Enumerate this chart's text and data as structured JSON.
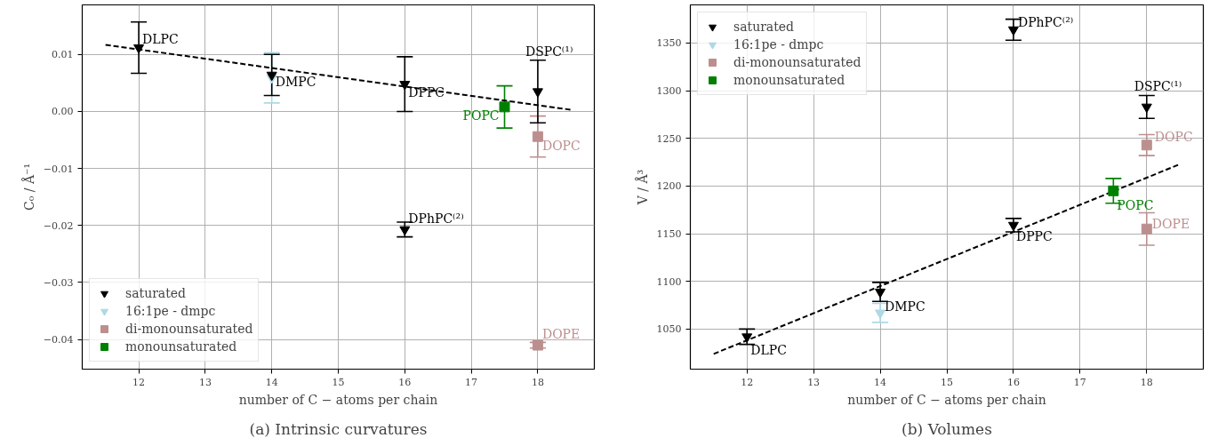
{
  "chart_data": [
    {
      "type": "scatter",
      "title": "(a) Intrinsic curvatures",
      "xlabel": "number of C − atoms per chain",
      "ylabel": "C₀ / Å⁻¹",
      "xlim": [
        11.15,
        18.85
      ],
      "ylim": [
        -0.0452,
        0.0187
      ],
      "xticks": [
        12,
        13,
        14,
        15,
        16,
        17,
        18
      ],
      "yticks": [
        {
          "value": -0.04,
          "label": "−0.04"
        },
        {
          "value": -0.03,
          "label": "−0.03"
        },
        {
          "value": -0.02,
          "label": "−0.02"
        },
        {
          "value": -0.01,
          "label": "−0.01"
        },
        {
          "value": 0.0,
          "label": "0.00"
        },
        {
          "value": 0.01,
          "label": "0.01"
        }
      ],
      "grid": true,
      "legend": "bottom left",
      "series": [
        {
          "name": "saturated",
          "color": "#000000",
          "marker": "triangle",
          "x": [
            12,
            14,
            16,
            16,
            18
          ],
          "values": [
            0.0112,
            0.0064,
            0.0048,
            -0.0207,
            0.0035
          ],
          "errors": [
            0.0045,
            0.0036,
            0.0048,
            0.0013,
            0.0055
          ]
        },
        {
          "name": "16:1pe - dmpc",
          "color": "#add8e6",
          "marker": "triangle",
          "x": [
            14
          ],
          "values": [
            0.0059
          ],
          "errors": [
            0.0044
          ]
        },
        {
          "name": "di-monounsaturated",
          "color": "#bc8f8f",
          "marker": "square",
          "x": [
            18,
            18
          ],
          "values": [
            -0.0044,
            -0.041
          ],
          "errors": [
            0.0036,
            0.0005
          ]
        },
        {
          "name": "monounsaturated",
          "color": "#008000",
          "marker": "square",
          "x": [
            17.5
          ],
          "values": [
            0.0008
          ],
          "errors": [
            0.0037
          ]
        },
        {
          "type": "line",
          "color": "#000000",
          "line_style": "dashed",
          "x": [
            11.5,
            18.5
          ],
          "values": [
            0.0117,
            0.0003
          ]
        }
      ],
      "annotations": [
        {
          "text": "DLPC",
          "x": 12,
          "y": 0.0112
        },
        {
          "text": "DMPC",
          "x": 14,
          "y": 0.0064
        },
        {
          "text": "DPPC",
          "x": 16,
          "y": 0.0048
        },
        {
          "text": "DPhPC⁽²⁾",
          "x": 16,
          "y": -0.0207
        },
        {
          "text": "DSPC⁽¹⁾",
          "x": 18,
          "y": 0.0035
        },
        {
          "text": "POPC",
          "x": 17.5,
          "y": 0.0008
        },
        {
          "text": "DOPC",
          "x": 18,
          "y": -0.0044
        },
        {
          "text": "DOPE",
          "x": 18,
          "y": -0.041
        }
      ]
    },
    {
      "type": "scatter",
      "title": "(b) Volumes",
      "xlabel": "number of C − atoms per chain",
      "ylabel": "V / Å³",
      "xlim": [
        11.15,
        18.85
      ],
      "ylim": [
        1008,
        1390
      ],
      "xticks": [
        12,
        13,
        14,
        15,
        16,
        17,
        18
      ],
      "yticks": [
        1050,
        1100,
        1150,
        1200,
        1250,
        1300,
        1350
      ],
      "grid": true,
      "legend": "top left",
      "series": [
        {
          "name": "saturated",
          "color": "#000000",
          "marker": "triangle",
          "x": [
            12,
            14,
            16,
            16,
            18
          ],
          "values": [
            1042,
            1089,
            1159,
            1364,
            1283
          ],
          "errors": [
            8,
            10,
            7,
            11,
            12
          ]
        },
        {
          "name": "16:1pe - dmpc",
          "color": "#add8e6",
          "marker": "triangle",
          "x": [
            14
          ],
          "values": [
            1067
          ],
          "errors": [
            10
          ]
        },
        {
          "name": "di-monounsaturated",
          "color": "#bc8f8f",
          "marker": "square",
          "x": [
            18,
            18
          ],
          "values": [
            1243,
            1155
          ],
          "errors": [
            11,
            17
          ]
        },
        {
          "name": "monounsaturated",
          "color": "#008000",
          "marker": "square",
          "x": [
            17.5
          ],
          "values": [
            1195
          ],
          "errors": [
            13
          ]
        },
        {
          "type": "line",
          "color": "#000000",
          "line_style": "dashed",
          "x": [
            11.5,
            18.5
          ],
          "values": [
            1024,
            1223
          ]
        }
      ],
      "annotations": [
        {
          "text": "DPhPC⁽²⁾",
          "x": 16,
          "y": 1364
        },
        {
          "text": "DSPC⁽¹⁾",
          "x": 18,
          "y": 1283
        },
        {
          "text": "DOPC",
          "x": 18,
          "y": 1243
        },
        {
          "text": "POPC",
          "x": 17.5,
          "y": 1195
        },
        {
          "text": "DOPE",
          "x": 18,
          "y": 1155
        },
        {
          "text": "DPPC",
          "x": 16,
          "y": 1159
        },
        {
          "text": "DMPC",
          "x": 14,
          "y": 1089
        },
        {
          "text": "DLPC",
          "x": 12,
          "y": 1042
        }
      ]
    }
  ]
}
